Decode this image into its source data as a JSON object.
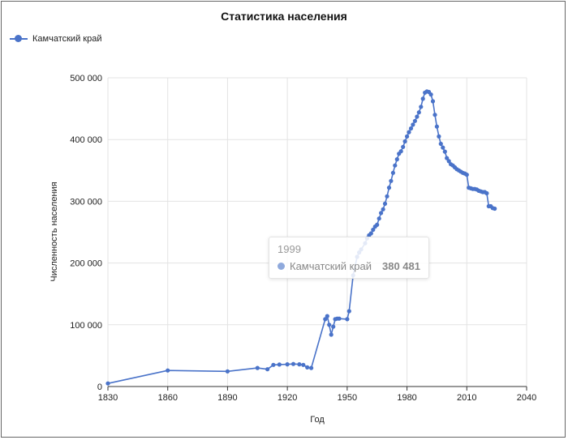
{
  "chart_data": {
    "type": "line",
    "title": "Статистика населения",
    "xlabel": "Год",
    "ylabel": "Численность населения",
    "xlim": [
      1830,
      2040
    ],
    "ylim": [
      0,
      500000
    ],
    "x_ticks": [
      "1830",
      "1860",
      "1890",
      "1920",
      "1950",
      "1980",
      "2010",
      "2040"
    ],
    "y_ticks": [
      "0",
      "100 000",
      "200 000",
      "300 000",
      "400 000",
      "500 000"
    ],
    "grid": true,
    "legend_position": "top-left",
    "series": [
      {
        "name": "Камчатский край",
        "color": "#4a73c9",
        "x": [
          1830,
          1860,
          1890,
          1905,
          1910,
          1913,
          1916,
          1920,
          1923,
          1926,
          1928,
          1930,
          1932,
          1939,
          1940,
          1941,
          1942,
          1943,
          1944,
          1945,
          1946,
          1950,
          1951,
          1953,
          1955,
          1956,
          1957,
          1959,
          1960,
          1961,
          1962,
          1963,
          1964,
          1965,
          1966,
          1967,
          1968,
          1969,
          1970,
          1971,
          1972,
          1973,
          1974,
          1975,
          1976,
          1977,
          1978,
          1979,
          1980,
          1981,
          1982,
          1983,
          1984,
          1985,
          1986,
          1987,
          1988,
          1989,
          1990,
          1991,
          1992,
          1993,
          1994,
          1995,
          1996,
          1997,
          1998,
          1999,
          2000,
          2001,
          2002,
          2003,
          2004,
          2005,
          2006,
          2007,
          2008,
          2009,
          2010,
          2011,
          2012,
          2013,
          2014,
          2015,
          2016,
          2017,
          2018,
          2019,
          2020,
          2021,
          2022,
          2023,
          2024
        ],
        "values": [
          5000,
          26000,
          24500,
          30000,
          28000,
          35000,
          35500,
          36000,
          36500,
          36000,
          35000,
          31000,
          30000,
          109000,
          114000,
          100000,
          84000,
          97000,
          109000,
          110000,
          110000,
          109000,
          122000,
          180000,
          210000,
          217000,
          222000,
          232000,
          240000,
          245000,
          248000,
          254000,
          259000,
          262000,
          272000,
          281000,
          287000,
          296000,
          308000,
          322000,
          333000,
          346000,
          358000,
          368000,
          377000,
          381000,
          388000,
          397000,
          405000,
          412000,
          418000,
          424000,
          430000,
          437000,
          444000,
          453000,
          466000,
          476000,
          478000,
          477000,
          473000,
          462000,
          440000,
          421000,
          405000,
          393000,
          387000,
          380481,
          370000,
          365000,
          360000,
          358000,
          355000,
          352000,
          350000,
          348000,
          346000,
          345000,
          343000,
          322000,
          321000,
          320000,
          320000,
          319000,
          317000,
          316000,
          315000,
          315000,
          313000,
          292000,
          292000,
          289000,
          288000
        ]
      }
    ]
  },
  "tooltip": {
    "year": "1999",
    "series_name": "Камчатский край",
    "value": "380 481"
  }
}
